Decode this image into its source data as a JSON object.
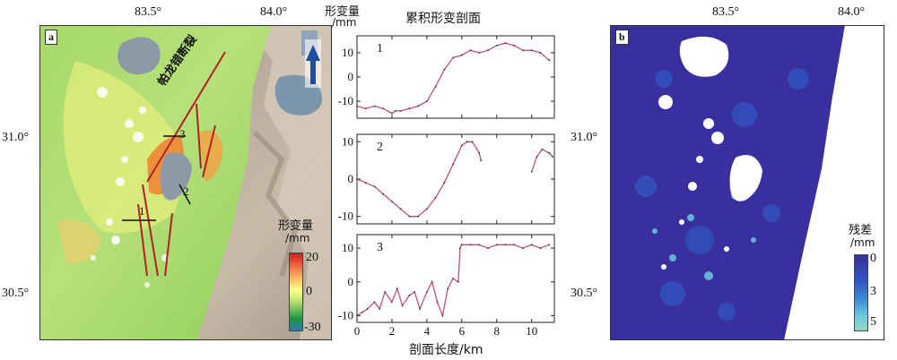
{
  "panel_a": {
    "label": "a",
    "lon_ticks": [
      "83.5°",
      "84.0°"
    ],
    "lat_ticks": [
      "31.0°",
      "30.5°"
    ],
    "fault_label": "帕龙错断裂",
    "profile_ids": [
      "1",
      "2",
      "3"
    ],
    "colorbar": {
      "title": "形变量",
      "unit": "/mm",
      "ticks": [
        "20",
        "0",
        "-30"
      ],
      "colors": [
        "#d7191c",
        "#fdae61",
        "#ffff8c",
        "#a6d96a",
        "#1a9641",
        "#2c7bb6"
      ]
    }
  },
  "north_arrow": {
    "title": "形变量",
    "unit": "/mm"
  },
  "profiles": {
    "title": "累积形变剖面",
    "xlabel": "剖面长度/km",
    "x_ticks": [
      "0",
      "2",
      "4",
      "6",
      "8",
      "10"
    ],
    "series_color": "#c0507a"
  },
  "chart_data": [
    {
      "type": "line",
      "title": "1",
      "xlim": [
        0,
        11.3
      ],
      "ylim": [
        -17,
        17
      ],
      "y_ticks": [
        "10",
        "0",
        "-10"
      ],
      "x": [
        0,
        0.5,
        1,
        1.5,
        2,
        2.2,
        2.5,
        3,
        3.5,
        4,
        4.5,
        5,
        5.5,
        6,
        6.5,
        7,
        7.5,
        8,
        8.5,
        9,
        9.5,
        10,
        10.5,
        11
      ],
      "values": [
        -12,
        -13,
        -12,
        -13,
        -15,
        -14,
        -14,
        -13,
        -12,
        -10,
        -4,
        3,
        8,
        9,
        11,
        10,
        11,
        13,
        14,
        13,
        11,
        11,
        10,
        7
      ]
    },
    {
      "type": "line",
      "title": "2",
      "xlim": [
        0,
        11.3
      ],
      "ylim": [
        -12,
        12
      ],
      "y_ticks": [
        "10",
        "0",
        "-10"
      ],
      "segments": [
        {
          "x": [
            0,
            0.5,
            1,
            1.5,
            2,
            2.5,
            3,
            3.5,
            4,
            4.5,
            5,
            5.5,
            6,
            6.3,
            6.6,
            7,
            7.1
          ],
          "values": [
            0,
            -1,
            -2,
            -4,
            -6,
            -8,
            -10,
            -10,
            -8,
            -5,
            -1,
            4,
            9,
            10,
            10,
            7,
            5
          ]
        },
        {
          "x": [
            10,
            10.3,
            10.6,
            11,
            11.2
          ],
          "values": [
            2,
            6,
            8,
            7,
            6
          ]
        }
      ]
    },
    {
      "type": "line",
      "title": "3",
      "xlim": [
        0,
        11.3
      ],
      "ylim": [
        -12,
        14
      ],
      "y_ticks": [
        "10",
        "0",
        "-10"
      ],
      "x": [
        0,
        0.3,
        0.6,
        1,
        1.3,
        1.6,
        2,
        2.3,
        2.6,
        3,
        3.3,
        3.6,
        4,
        4.3,
        4.6,
        4.9,
        5.2,
        5.5,
        5.8,
        5.9,
        6,
        6.5,
        7,
        7.5,
        8,
        8.5,
        9,
        9.5,
        10,
        10.5,
        11
      ],
      "values": [
        -10,
        -9,
        -8,
        -6,
        -8,
        -3,
        -6,
        -2,
        -7,
        -4,
        -3,
        -8,
        -3,
        0,
        -6,
        -10,
        -2,
        1,
        0,
        10,
        11,
        11,
        11,
        10,
        11,
        11,
        11,
        10,
        11,
        10,
        11
      ]
    }
  ],
  "panel_b": {
    "label": "b",
    "lon_ticks": [
      "83.5°",
      "84.0°"
    ],
    "lat_ticks": [
      "31.0°",
      "30.5°"
    ],
    "colorbar": {
      "title": "残差",
      "unit": "/mm",
      "ticks": [
        "0",
        "3",
        "5"
      ],
      "colors": [
        "#3a2f9e",
        "#2f58c4",
        "#3f8fd6",
        "#6cc6e0",
        "#8fdcc8"
      ]
    }
  }
}
